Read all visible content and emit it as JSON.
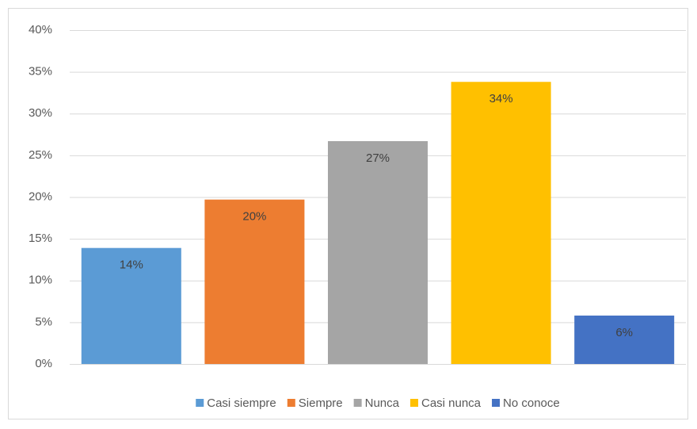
{
  "chart_data": {
    "type": "bar",
    "categories": [
      "Casi siempre",
      "Siempre",
      "Nunca",
      "Casi nunca",
      "No conoce"
    ],
    "values": [
      13.9,
      19.7,
      26.7,
      33.8,
      5.8
    ],
    "value_labels": [
      "14%",
      "20%",
      "27%",
      "34%",
      "6%"
    ],
    "colors": [
      "#5b9bd5",
      "#ed7d31",
      "#a5a5a5",
      "#ffc000",
      "#4472c4"
    ],
    "ylim": [
      0,
      40
    ],
    "yticks": [
      {
        "value": 0,
        "label": "0%"
      },
      {
        "value": 5,
        "label": "5%"
      },
      {
        "value": 10,
        "label": "10%"
      },
      {
        "value": 15,
        "label": "15%"
      },
      {
        "value": 20,
        "label": "20%"
      },
      {
        "value": 25,
        "label": "25%"
      },
      {
        "value": 30,
        "label": "30%"
      },
      {
        "value": 35,
        "label": "35%"
      },
      {
        "value": 40,
        "label": "40%"
      }
    ],
    "grid": true,
    "legend": "bottom"
  }
}
